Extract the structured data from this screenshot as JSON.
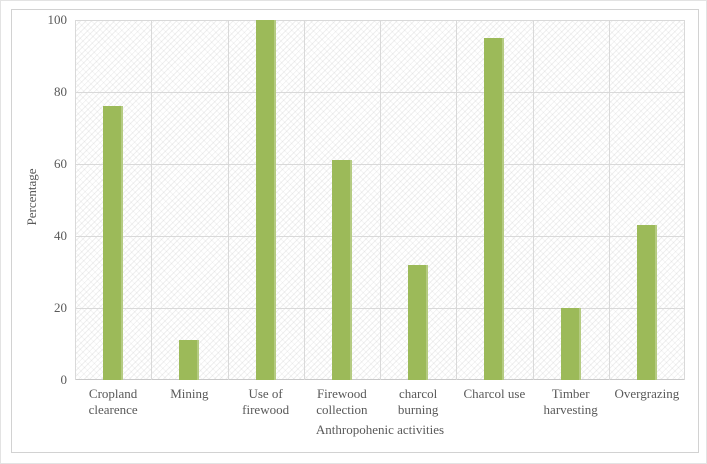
{
  "window": {
    "background_color": "#ffffff",
    "frame_border_color": "#d2d2d2"
  },
  "chart_data": {
    "type": "bar",
    "title": "",
    "categories": [
      "Cropland clearence",
      "Mining",
      "Use of firewood",
      "Firewood collection",
      "charcol burning",
      "Charcol use",
      "Timber harvesting",
      "Overgrazing"
    ],
    "values": [
      76,
      11,
      100,
      61,
      32,
      95,
      20,
      43
    ],
    "xlabel": "Anthropohenic activities",
    "ylabel": "Percentage",
    "ylim": [
      0,
      100
    ],
    "yticks": [
      0,
      20,
      40,
      60,
      80,
      100
    ],
    "grid": "horizontal-and-vertical",
    "legend": "none",
    "plot_area_pattern": "light-diagonal-hatch",
    "bar_color": "#9cba59",
    "gridline_color": "#d9d9d9",
    "axis_line_color": "#c9c9c9",
    "tick_label_color": "#595959"
  }
}
